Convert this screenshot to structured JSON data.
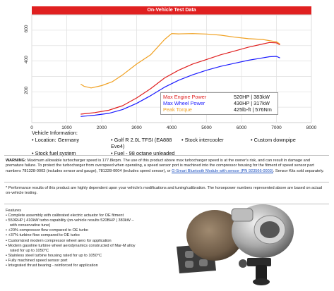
{
  "header": {
    "title": "On-Vehicle Test Data"
  },
  "chart_data": {
    "type": "line",
    "xlabel": "",
    "ylabel": "",
    "xlim": [
      0,
      8000
    ],
    "ylim": [
      0,
      700
    ],
    "x_ticks": [
      "0",
      "1000",
      "2000",
      "3000",
      "4000",
      "5000",
      "6000",
      "7000",
      "8000"
    ],
    "y_ticks": [
      "200",
      "400",
      "600"
    ],
    "grid": true,
    "legend_position": "bottom-right",
    "series": [
      {
        "name": "Max Engine Power",
        "color": "#e02020",
        "x": [
          1400,
          1800,
          2200,
          2600,
          3000,
          3400,
          3800,
          4200,
          4600,
          5000,
          5400,
          5800,
          6200,
          6600,
          6800,
          7000,
          7100
        ],
        "y": [
          55,
          65,
          80,
          110,
          160,
          220,
          290,
          340,
          380,
          410,
          440,
          465,
          490,
          510,
          520,
          518,
          505
        ]
      },
      {
        "name": "Max Wheel Power",
        "color": "#1a1aff",
        "x": [
          1400,
          1800,
          2200,
          2600,
          3000,
          3400,
          3800,
          4200,
          4600,
          5000,
          5400,
          5800,
          6200,
          6600,
          6800,
          7000,
          7100
        ],
        "y": [
          40,
          48,
          60,
          85,
          125,
          175,
          230,
          275,
          310,
          340,
          365,
          385,
          405,
          420,
          428,
          430,
          420
        ]
      },
      {
        "name": "Peak Torque",
        "color": "#f0a020",
        "x": [
          1400,
          1500,
          1700,
          2000,
          2300,
          2600,
          3000,
          3400,
          3800,
          4000,
          4200,
          4600,
          5000,
          5400,
          5800,
          6200,
          6600,
          7000,
          7100
        ],
        "y": [
          250,
          235,
          225,
          240,
          265,
          310,
          380,
          440,
          540,
          578,
          576,
          578,
          575,
          568,
          555,
          545,
          540,
          525,
          510
        ]
      }
    ]
  },
  "legend": {
    "rows": [
      {
        "label": "Max Engine Power",
        "value": "520HP | 383kW",
        "color": "#e02020"
      },
      {
        "label": "Max Wheel Power",
        "value": "430HP | 317kW",
        "color": "#1a1aff"
      },
      {
        "label": "Peak Torque",
        "value": "425lb-ft | 576Nm",
        "color": "#f0a020"
      }
    ]
  },
  "vehicle_info": {
    "heading": "Vehicle Information:",
    "row1": [
      "• Location: Germany",
      "• Golf R 2.0L TFSI (EA888 Evo4)",
      "• Stock intercooler",
      "• Custom downpipe"
    ],
    "row2": [
      "• Stock fuel system",
      "• Fuel - 98 octane unleaded"
    ]
  },
  "warning": {
    "label": "WARNING:",
    "text_a": " Maximum allowable turbocharger speed is 177.8krpm. The use of this product above max turbocharger speed is at the owner's risk, and can result in damage and premature failure. To protect the turbocharger from overspeed when operating, a speed sensor port is machined into the compressor housing for the fitment of speed sensor part numbers 781328-0003 (includes sensor and gauge), 781328-0004 (includes speed sensor), or ",
    "link": "G-Smart Bluetooth Module with sensor (PN 923566-0003)",
    "text_b": ". Sensor Kits sold separately."
  },
  "perf_note": "* Performance results of this product are highly dependent upon your vehicle's modifications and tuning/calibration. The horsepower numbers represented above are based on actual on-vehicle testing.",
  "features": {
    "heading": "Features",
    "items": [
      "• Complete assembly with calibrated electric actuator for OE fitment",
      "• 550RHP | 410kW turbo capability (on-vehicle results 520BHP | 383kW –",
      "  with conservative tune)",
      "• +20% compressor flow compared to OE turbo",
      "• +37% turbine flow compared to OE turbo",
      "• Customized modern compressor wheel aero for application",
      "• Modern gasoline turbine wheel aerodynamics constructed of Mar-M alloy",
      "  rated for up to 1050°C",
      "• Stainless steel turbine housing rated for up to 1050°C",
      "• Fully machined speed sensor port",
      "• Integrated thrust bearing - reinforced for application"
    ]
  }
}
